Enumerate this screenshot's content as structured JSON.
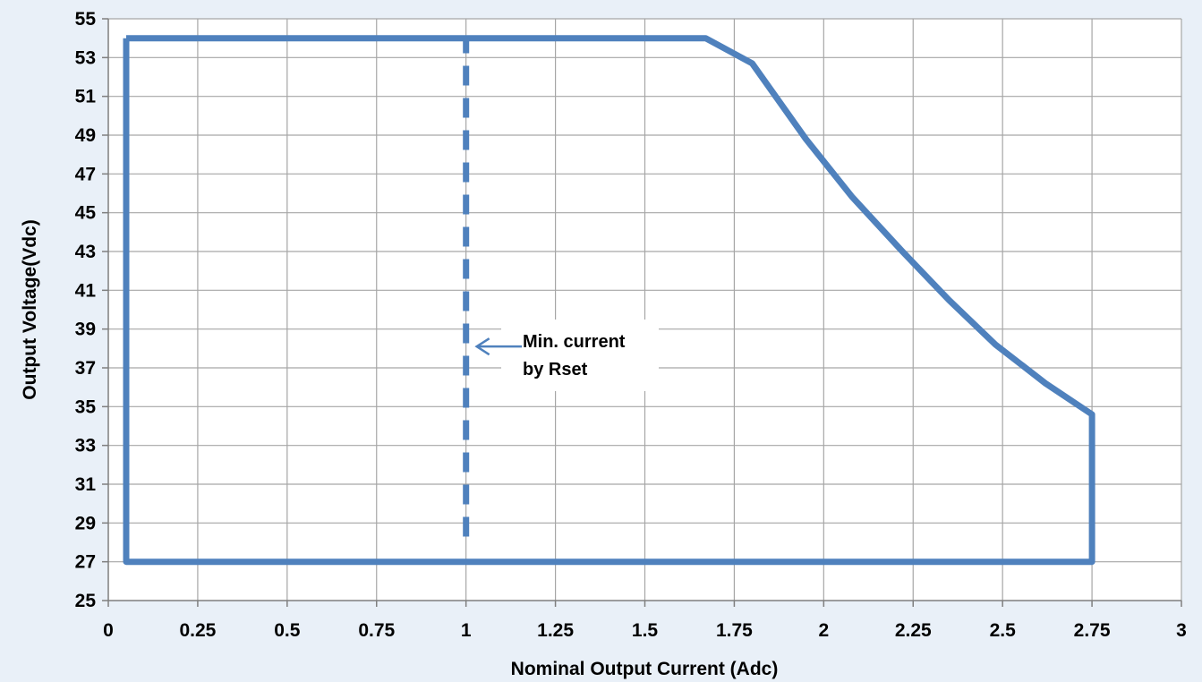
{
  "chart_data": {
    "type": "line",
    "title": "",
    "xlabel": "Nominal Output Current (Adc)",
    "ylabel": "Output Voltage(Vdc)",
    "xlim": [
      0,
      3
    ],
    "ylim": [
      25,
      55
    ],
    "x_ticks": [
      0,
      0.25,
      0.5,
      0.75,
      1,
      1.25,
      1.5,
      1.75,
      2,
      2.25,
      2.5,
      2.75,
      3
    ],
    "x_tick_labels": [
      "0",
      "0.25",
      "0.5",
      "0.75",
      "1",
      "1.25",
      "1.5",
      "1.75",
      "2",
      "2.25",
      "2.5",
      "2.75",
      "3"
    ],
    "y_ticks": [
      25,
      27,
      29,
      31,
      33,
      35,
      37,
      39,
      41,
      43,
      45,
      47,
      49,
      51,
      53,
      55
    ],
    "y_tick_labels": [
      "25",
      "27",
      "29",
      "31",
      "33",
      "35",
      "37",
      "39",
      "41",
      "43",
      "45",
      "47",
      "49",
      "51",
      "53",
      "55"
    ],
    "grid": true,
    "series": [
      {
        "style": "solid",
        "color": "#4f81bd",
        "x": [
          0.05,
          1.67,
          1.8,
          1.95,
          2.08,
          2.22,
          2.35,
          2.48,
          2.62,
          2.75,
          2.75,
          0.05,
          0.05
        ],
        "y": [
          54,
          54,
          52.7,
          48.8,
          45.8,
          43.0,
          40.5,
          38.2,
          36.2,
          34.6,
          27,
          27,
          54
        ]
      },
      {
        "style": "dashed",
        "color": "#4f81bd",
        "x": [
          1,
          1
        ],
        "y": [
          28.3,
          54
        ]
      }
    ],
    "annotations": [
      {
        "lines": [
          "Min. current",
          "by Rset"
        ],
        "arrow_to": {
          "x": 1.03,
          "y": 38.1
        }
      }
    ]
  }
}
